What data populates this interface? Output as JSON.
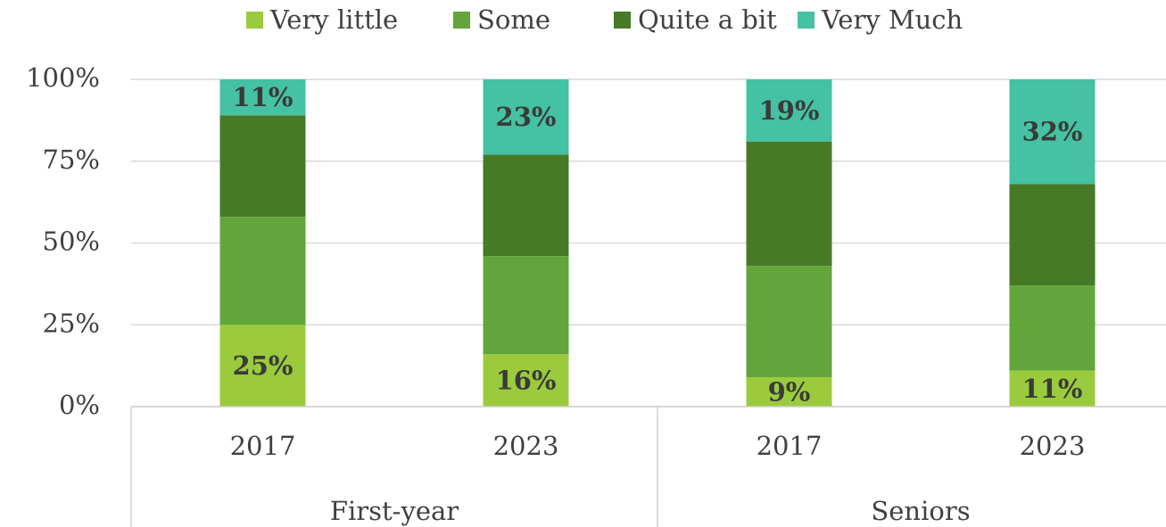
{
  "chart_data": {
    "type": "stacked_bar",
    "categories": [
      "2017",
      "2023",
      "2017",
      "2023"
    ],
    "group_labels": [
      "First-year",
      "Seniors"
    ],
    "series": [
      {
        "name": "Very little",
        "color": "#9bcb3c",
        "values": [
          25,
          16,
          9,
          11
        ],
        "value_labels": [
          "25%",
          "16%",
          "9%",
          "11%"
        ]
      },
      {
        "name": "Some",
        "color": "#62a53a",
        "values": [
          33,
          30,
          34,
          26
        ]
      },
      {
        "name": "Quite a bit",
        "color": "#477a26",
        "values": [
          31,
          31,
          38,
          31
        ]
      },
      {
        "name": "Very Much",
        "color": "#45c1a3",
        "values": [
          11,
          23,
          19,
          32
        ],
        "value_labels": [
          "11%",
          "23%",
          "19%",
          "32%"
        ]
      }
    ],
    "ylim": [
      0,
      100
    ],
    "yticks": [
      {
        "value": 0,
        "label": "0%"
      },
      {
        "value": 25,
        "label": "25%"
      },
      {
        "value": 50,
        "label": "50%"
      },
      {
        "value": 75,
        "label": "75%"
      },
      {
        "value": 100,
        "label": "100%"
      }
    ],
    "grid": true,
    "legend": "top"
  }
}
